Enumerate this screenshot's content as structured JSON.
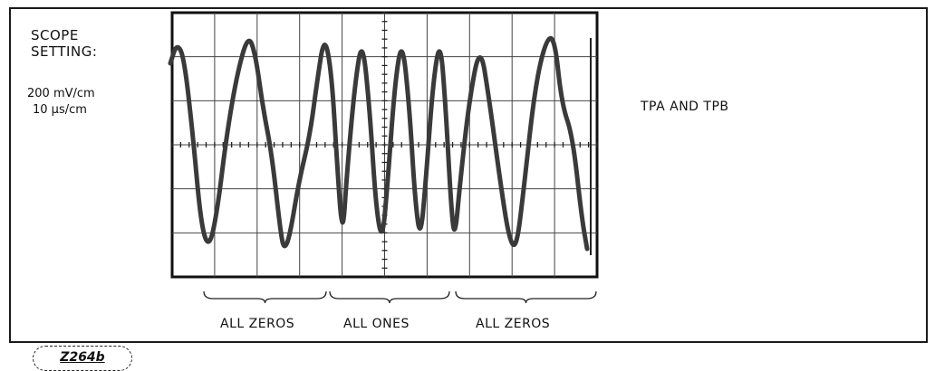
{
  "scope_setting": {
    "title_line1": "SCOPE",
    "title_line2": "SETTING:",
    "volts_per_div": "200 mV/cm",
    "time_per_div": "10 µs/cm"
  },
  "signal_name": "TPA AND TPB",
  "segments": [
    {
      "label": "ALL ZEROS"
    },
    {
      "label": "ALL ONES"
    },
    {
      "label": "ALL ZEROS"
    }
  ],
  "figure_id": "Z264b",
  "colors": {
    "ink": "#1a1a1a",
    "trace": "#3a3a3a"
  }
}
